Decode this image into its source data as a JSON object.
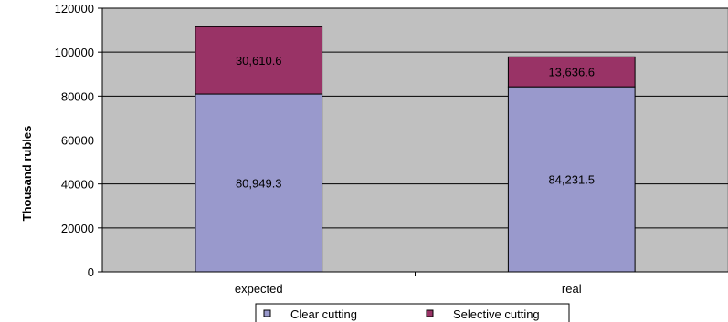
{
  "chart_data": {
    "type": "bar",
    "stacked": true,
    "categories": [
      "expected",
      "real"
    ],
    "series": [
      {
        "name": "Clear cutting",
        "values": [
          80949.3,
          84231.5
        ],
        "labels": [
          "80,949.3",
          "84,231.5"
        ],
        "color": "#9999cc"
      },
      {
        "name": "Selective cutting",
        "values": [
          30610.6,
          13636.6
        ],
        "labels": [
          "30,610.6",
          "13,636.6"
        ],
        "color": "#993366"
      }
    ],
    "title": "",
    "xlabel": "",
    "ylabel": "Thousand  rubles",
    "ylim": [
      0,
      120000
    ],
    "yticks": [
      "0",
      "20000",
      "40000",
      "60000",
      "80000",
      "100000",
      "120000"
    ],
    "plot_background": "#c0c0c0",
    "grid": true,
    "legend_position": "bottom"
  }
}
